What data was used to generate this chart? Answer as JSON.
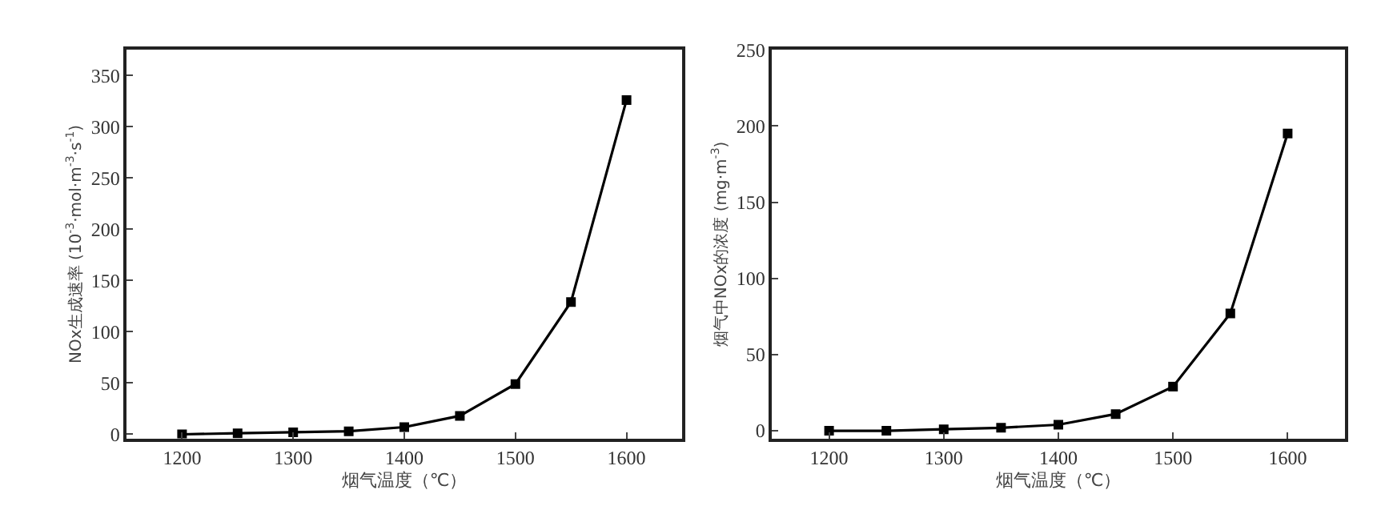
{
  "chart_data": [
    {
      "type": "line",
      "xlabel": "烟气温度（℃）",
      "ylabel": "NOx生成速率 (10$^{-3}$·mol·m$^{-3}$·s$^{-1}$)",
      "x": [
        1200,
        1250,
        1300,
        1350,
        1400,
        1450,
        1500,
        1550,
        1600
      ],
      "series": [
        {
          "color": "#000000",
          "values": [
            0,
            1,
            2,
            3,
            7,
            18,
            49,
            129,
            326
          ]
        }
      ],
      "xlim": [
        1150,
        1650
      ],
      "xticks": [
        1200,
        1300,
        1400,
        1500,
        1600
      ],
      "ylim": [
        -4,
        375
      ],
      "yticks": [
        0,
        50,
        100,
        150,
        200,
        250,
        300,
        350
      ],
      "marker": "square",
      "line_style": "solid"
    },
    {
      "type": "line",
      "xlabel": "烟气温度（℃）",
      "ylabel": "烟气中NOx的浓度 (mg·m$^{-3}$)",
      "x": [
        1200,
        1250,
        1300,
        1350,
        1400,
        1450,
        1500,
        1550,
        1600
      ],
      "series": [
        {
          "color": "#000000",
          "values": [
            0,
            0,
            1,
            2,
            4,
            11,
            29,
            77,
            195
          ]
        }
      ],
      "xlim": [
        1150,
        1650
      ],
      "xticks": [
        1200,
        1300,
        1400,
        1500,
        1600
      ],
      "ylim": [
        -5,
        250
      ],
      "yticks": [
        0,
        50,
        100,
        150,
        200,
        250
      ],
      "marker": "square",
      "line_style": "solid"
    }
  ]
}
